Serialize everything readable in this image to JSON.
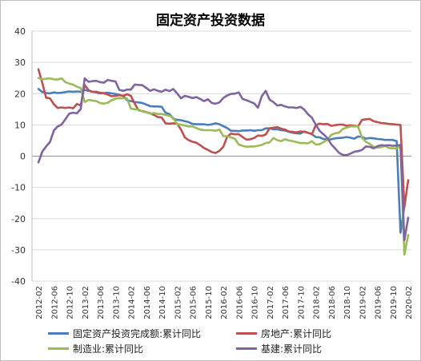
{
  "chart_data": {
    "type": "line",
    "title": "固定资产投资数据",
    "ylim": [
      -40,
      40
    ],
    "yticks": [
      40,
      30,
      20,
      10,
      0,
      -10,
      -20,
      -30,
      -40
    ],
    "grid": "horizontal",
    "legend_position": "bottom",
    "x_tick_labels": [
      "2012-02",
      "2012-06",
      "2012-10",
      "2013-02",
      "2013-06",
      "2013-10",
      "2014-02",
      "2014-06",
      "2014-10",
      "2015-02",
      "2015-06",
      "2015-10",
      "2016-02",
      "2016-06",
      "2016-10",
      "2017-02",
      "2017-06",
      "2017-10",
      "2018-02",
      "2018-06",
      "2018-10",
      "2019-02",
      "2019-06",
      "2019-10",
      "2020-02"
    ],
    "x_start": "2012-02",
    "series": [
      {
        "name": "固定资产投资完成额:累计同比",
        "color": "#4a7ebb",
        "values": [
          21.5,
          20.5,
          20.2,
          20.1,
          20.4,
          20.2,
          20.3,
          20.5,
          20.7,
          20.6,
          20.7,
          20.6,
          21.2,
          20.9,
          20.6,
          20.4,
          20.1,
          20.2,
          20.3,
          20.1,
          19.9,
          19.6,
          19.3,
          17.9,
          17.6,
          17.3,
          17.2,
          17.0,
          16.5,
          16.0,
          15.9,
          15.9,
          15.8,
          13.9,
          13.5,
          12.0,
          11.6,
          11.5,
          11.2,
          10.9,
          10.3,
          10.2,
          10.2,
          10.2,
          10.0,
          10.2,
          10.5,
          10.2,
          9.6,
          9.0,
          8.1,
          8.1,
          8.0,
          8.2,
          8.2,
          8.3,
          8.1,
          8.3,
          8.3,
          8.9,
          8.9,
          8.6,
          8.6,
          8.3,
          8.2,
          7.8,
          7.5,
          7.3,
          7.2,
          7.9,
          7.5,
          7.0,
          6.1,
          6.0,
          5.5,
          5.3,
          5.4,
          5.7,
          5.8,
          5.9,
          6.1,
          5.9,
          5.6,
          6.3,
          6.1,
          5.6,
          5.8,
          5.7,
          5.5,
          5.4,
          5.2,
          5.2,
          5.2,
          4.8,
          -24.5,
          -16.1
        ]
      },
      {
        "name": "房地产:累计同比",
        "color": "#c0504d",
        "values": [
          27.8,
          23.5,
          18.7,
          18.5,
          16.6,
          15.4,
          15.6,
          15.4,
          15.6,
          15.3,
          16.7,
          16.2,
          22.8,
          21.1,
          20.6,
          20.6,
          20.3,
          20.1,
          19.7,
          19.2,
          19.3,
          19.5,
          19.3,
          19.8,
          19.3,
          16.8,
          14.7,
          14.4,
          14.1,
          13.7,
          13.2,
          12.5,
          12.4,
          10.5,
          10.4,
          10.5,
          10.4,
          8.5,
          6.0,
          5.1,
          4.6,
          4.3,
          3.5,
          2.6,
          2.0,
          1.3,
          1.0,
          1.7,
          3.0,
          6.2,
          7.2,
          7.0,
          7.0,
          6.1,
          5.3,
          5.4,
          5.8,
          6.6,
          6.5,
          6.9,
          8.9,
          9.1,
          9.3,
          8.8,
          8.5,
          7.9,
          7.8,
          7.6,
          7.9,
          7.8,
          7.5,
          7.0,
          9.9,
          10.4,
          10.2,
          10.3,
          9.7,
          9.9,
          10.1,
          10.1,
          9.7,
          9.9,
          9.7,
          9.5,
          11.6,
          11.8,
          11.9,
          11.2,
          10.9,
          10.6,
          10.5,
          10.3,
          10.2,
          10.1,
          10.0,
          -16.3,
          -7.7
        ]
      },
      {
        "name": "制造业:累计同比",
        "color": "#9bbb59",
        "values": [
          25.0,
          24.6,
          24.8,
          24.9,
          24.6,
          24.5,
          24.9,
          23.7,
          23.2,
          22.9,
          22.2,
          21.8,
          17.3,
          18.0,
          17.8,
          17.6,
          17.0,
          16.8,
          17.1,
          17.9,
          18.4,
          18.5,
          18.5,
          18.5,
          15.2,
          15.0,
          14.9,
          14.3,
          14.0,
          13.6,
          13.8,
          13.5,
          13.5,
          13.2,
          12.9,
          12.3,
          10.2,
          10.1,
          9.8,
          9.5,
          9.5,
          9.0,
          8.5,
          8.3,
          8.3,
          8.3,
          8.1,
          8.5,
          6.4,
          6.4,
          6.0,
          5.6,
          3.7,
          3.3,
          3.0,
          3.1,
          3.1,
          3.3,
          3.6,
          4.2,
          4.4,
          5.8,
          5.1,
          4.8,
          5.4,
          5.0,
          4.8,
          4.5,
          4.2,
          4.2,
          4.1,
          4.8,
          3.7,
          3.8,
          4.5,
          5.2,
          6.8,
          7.3,
          7.5,
          8.7,
          9.1,
          9.5,
          9.5,
          9.5,
          5.9,
          4.6,
          3.9,
          3.0,
          2.7,
          2.9,
          3.3,
          2.6,
          2.5,
          2.5,
          3.1,
          -31.5,
          -25.2
        ]
      },
      {
        "name": "基建:累计同比",
        "color": "#8064a2",
        "values": [
          -2.0,
          1.4,
          3.1,
          4.5,
          8.2,
          9.5,
          10.1,
          11.8,
          13.6,
          13.9,
          13.7,
          15.1,
          24.9,
          23.8,
          24.0,
          24.1,
          23.7,
          23.5,
          24.4,
          24.1,
          23.9,
          21.2,
          20.9,
          21.3,
          21.3,
          22.9,
          22.8,
          22.7,
          21.8,
          20.9,
          21.4,
          20.9,
          20.6,
          21.3,
          20.8,
          21.5,
          20.1,
          18.5,
          19.3,
          19.0,
          18.6,
          18.9,
          18.3,
          17.6,
          18.2,
          17.0,
          16.8,
          17.2,
          18.6,
          19.4,
          19.9,
          20.0,
          20.4,
          18.3,
          17.9,
          17.4,
          16.9,
          15.5,
          19.2,
          20.9,
          18.1,
          17.3,
          16.2,
          16.4,
          15.9,
          15.6,
          15.6,
          15.4,
          15.8,
          14.9,
          13.4,
          12.3,
          10.1,
          8.1,
          7.0,
          5.8,
          3.8,
          2.5,
          1.1,
          0.4,
          0.3,
          0.8,
          1.4,
          1.6,
          2.0,
          3.1,
          3.0,
          2.5,
          3.2,
          3.5,
          3.4,
          3.5,
          3.3,
          3.4,
          3.6,
          -26.9,
          -19.7
        ]
      }
    ]
  }
}
